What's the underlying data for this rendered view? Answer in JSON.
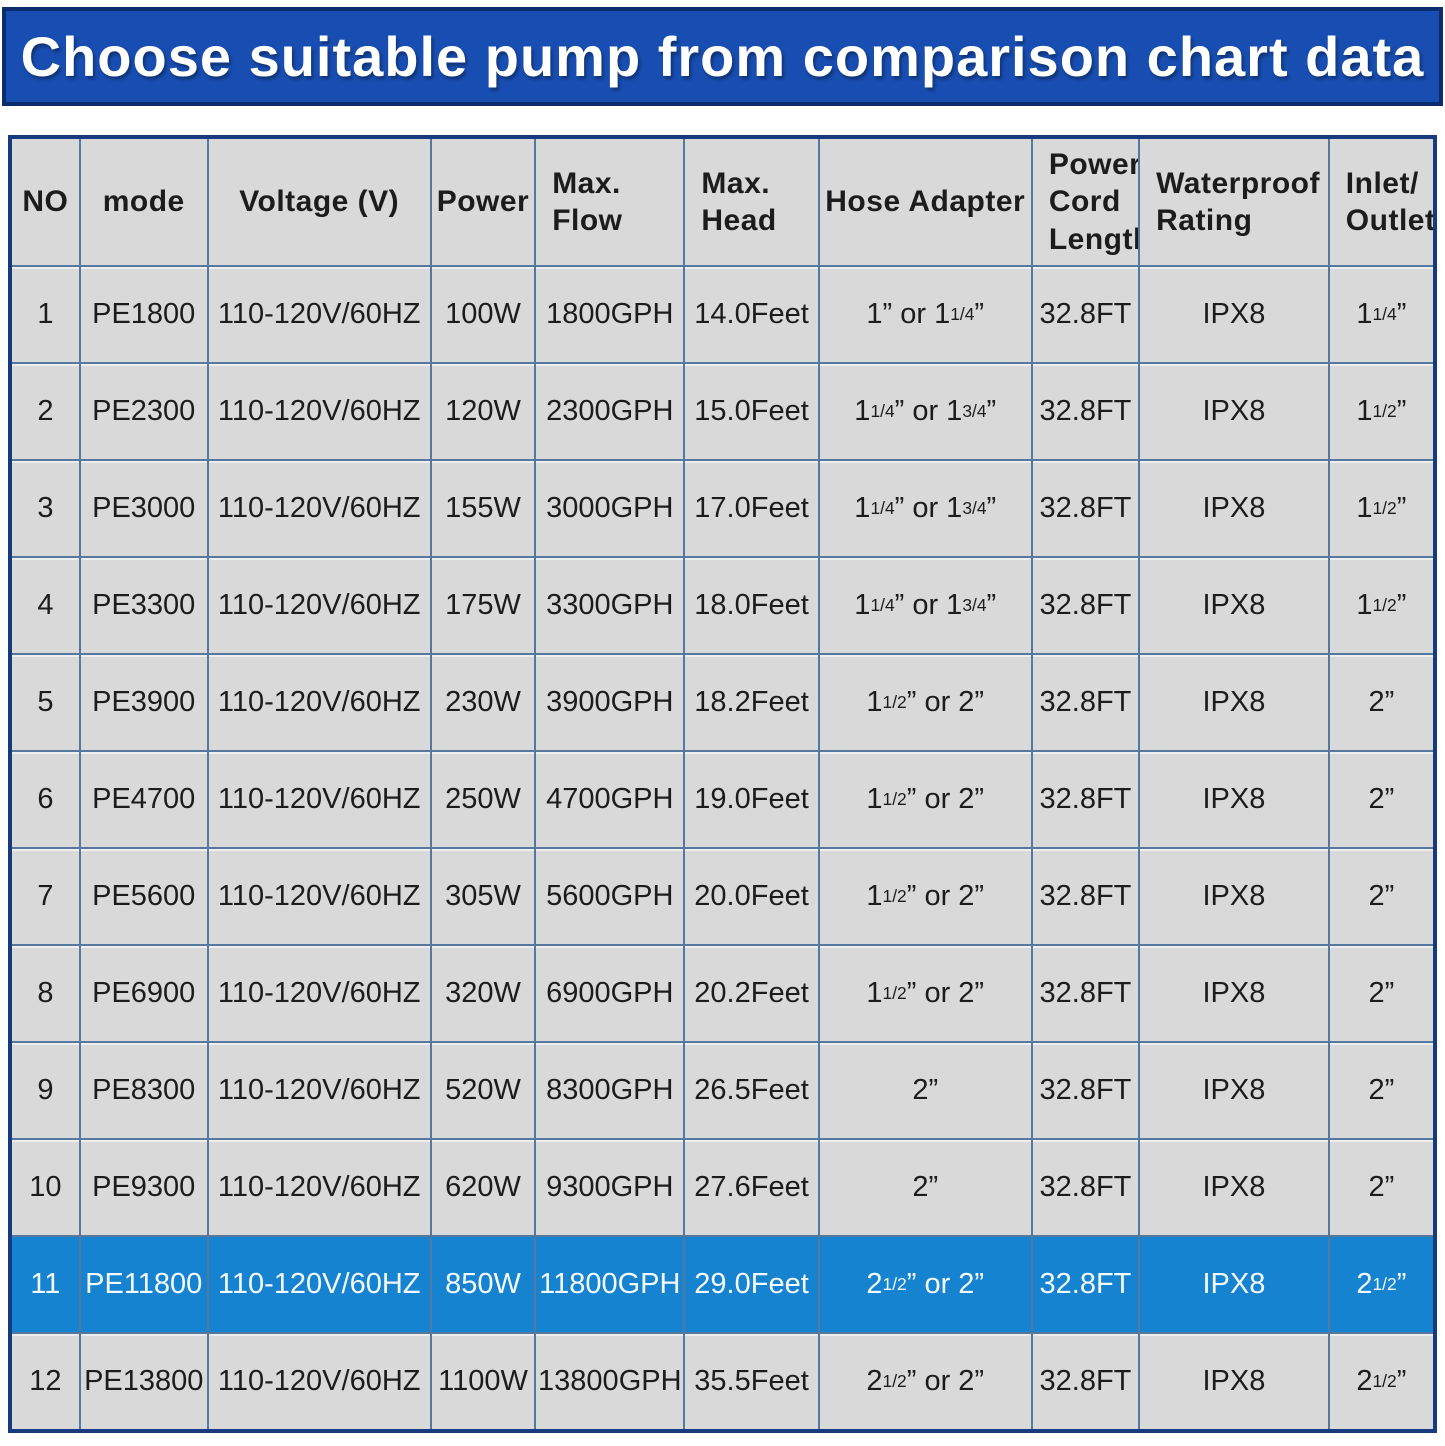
{
  "banner": {
    "title": "Choose suitable pump from comparison chart data"
  },
  "colors": {
    "banner_bg": "#184eb2",
    "banner_border": "#0c2d6d",
    "highlight_row_bg": "#1583cf",
    "cell_bg": "#d9d9d9",
    "grid_line": "#56789f",
    "outer_border": "#17397d",
    "text": "#1c1c1c",
    "highlight_text": "#f5faff"
  },
  "chart_data": {
    "type": "table",
    "title": "Choose suitable pump from comparison chart data",
    "highlighted_row_index": 10,
    "columns": [
      {
        "key": "no",
        "label": "NO"
      },
      {
        "key": "mode",
        "label": "mode"
      },
      {
        "key": "voltage",
        "label": "Voltage (V)"
      },
      {
        "key": "power",
        "label": "Power"
      },
      {
        "key": "max_flow",
        "label": "Max.\nFlow"
      },
      {
        "key": "max_head",
        "label": "Max.\nHead"
      },
      {
        "key": "hose_adapter",
        "label": "Hose Adapter"
      },
      {
        "key": "cord_length",
        "label": "Power\nCord\nLength"
      },
      {
        "key": "waterproof",
        "label": "Waterproof\nRating"
      },
      {
        "key": "inlet_outlet",
        "label": "Inlet/\nOutlet"
      }
    ],
    "rows": [
      {
        "no": "1",
        "mode": "PE1800",
        "voltage": "110-120V/60HZ",
        "power": "100W",
        "max_flow": "1800GPH",
        "max_head": "14.0Feet",
        "hose_adapter": "1” or 1[1/4]”",
        "cord_length": "32.8FT",
        "waterproof": "IPX8",
        "inlet_outlet": "1[1/4]”",
        "highlight": false
      },
      {
        "no": "2",
        "mode": "PE2300",
        "voltage": "110-120V/60HZ",
        "power": "120W",
        "max_flow": "2300GPH",
        "max_head": "15.0Feet",
        "hose_adapter": "1[1/4]” or 1[3/4]”",
        "cord_length": "32.8FT",
        "waterproof": "IPX8",
        "inlet_outlet": "1[1/2]”",
        "highlight": false
      },
      {
        "no": "3",
        "mode": "PE3000",
        "voltage": "110-120V/60HZ",
        "power": "155W",
        "max_flow": "3000GPH",
        "max_head": "17.0Feet",
        "hose_adapter": "1[1/4]” or 1[3/4]”",
        "cord_length": "32.8FT",
        "waterproof": "IPX8",
        "inlet_outlet": "1[1/2]”",
        "highlight": false
      },
      {
        "no": "4",
        "mode": "PE3300",
        "voltage": "110-120V/60HZ",
        "power": "175W",
        "max_flow": "3300GPH",
        "max_head": "18.0Feet",
        "hose_adapter": "1[1/4]” or 1[3/4]”",
        "cord_length": "32.8FT",
        "waterproof": "IPX8",
        "inlet_outlet": "1[1/2]”",
        "highlight": false
      },
      {
        "no": "5",
        "mode": "PE3900",
        "voltage": "110-120V/60HZ",
        "power": "230W",
        "max_flow": "3900GPH",
        "max_head": "18.2Feet",
        "hose_adapter": "1[1/2]” or 2”",
        "cord_length": "32.8FT",
        "waterproof": "IPX8",
        "inlet_outlet": "2”",
        "highlight": false
      },
      {
        "no": "6",
        "mode": "PE4700",
        "voltage": "110-120V/60HZ",
        "power": "250W",
        "max_flow": "4700GPH",
        "max_head": "19.0Feet",
        "hose_adapter": "1[1/2]” or 2”",
        "cord_length": "32.8FT",
        "waterproof": "IPX8",
        "inlet_outlet": "2”",
        "highlight": false
      },
      {
        "no": "7",
        "mode": "PE5600",
        "voltage": "110-120V/60HZ",
        "power": "305W",
        "max_flow": "5600GPH",
        "max_head": "20.0Feet",
        "hose_adapter": "1[1/2]” or 2”",
        "cord_length": "32.8FT",
        "waterproof": "IPX8",
        "inlet_outlet": "2”",
        "highlight": false
      },
      {
        "no": "8",
        "mode": "PE6900",
        "voltage": "110-120V/60HZ",
        "power": "320W",
        "max_flow": "6900GPH",
        "max_head": "20.2Feet",
        "hose_adapter": "1[1/2]” or 2”",
        "cord_length": "32.8FT",
        "waterproof": "IPX8",
        "inlet_outlet": "2”",
        "highlight": false
      },
      {
        "no": "9",
        "mode": "PE8300",
        "voltage": "110-120V/60HZ",
        "power": "520W",
        "max_flow": "8300GPH",
        "max_head": "26.5Feet",
        "hose_adapter": "2”",
        "cord_length": "32.8FT",
        "waterproof": "IPX8",
        "inlet_outlet": "2”",
        "highlight": false
      },
      {
        "no": "10",
        "mode": "PE9300",
        "voltage": "110-120V/60HZ",
        "power": "620W",
        "max_flow": "9300GPH",
        "max_head": "27.6Feet",
        "hose_adapter": "2”",
        "cord_length": "32.8FT",
        "waterproof": "IPX8",
        "inlet_outlet": "2”",
        "highlight": false
      },
      {
        "no": "11",
        "mode": "PE11800",
        "voltage": "110-120V/60HZ",
        "power": "850W",
        "max_flow": "11800GPH",
        "max_head": "29.0Feet",
        "hose_adapter": "2[1/2]” or 2”",
        "cord_length": "32.8FT",
        "waterproof": "IPX8",
        "inlet_outlet": "2[1/2]”",
        "highlight": true
      },
      {
        "no": "12",
        "mode": "PE13800",
        "voltage": "110-120V/60HZ",
        "power": "1100W",
        "max_flow": "13800GPH",
        "max_head": "35.5Feet",
        "hose_adapter": "2[1/2]” or 2”",
        "cord_length": "32.8FT",
        "waterproof": "IPX8",
        "inlet_outlet": "2[1/2]”",
        "highlight": false
      }
    ]
  }
}
